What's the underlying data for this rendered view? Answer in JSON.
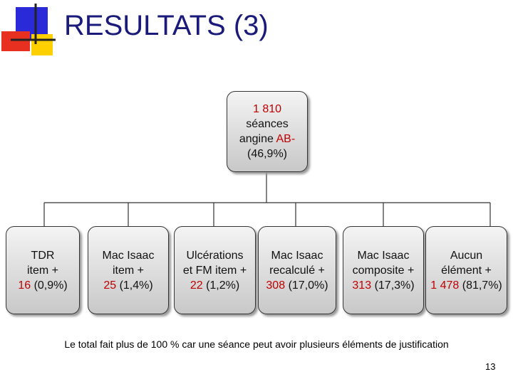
{
  "header": {
    "title": "RESULTATS (3)"
  },
  "root": {
    "count": "1 810",
    "line1": "séances",
    "line2": "angine",
    "group": "AB-",
    "percent": "(46,9%)"
  },
  "nodes": [
    {
      "lines": [
        "TDR",
        "item +"
      ],
      "count": "16",
      "percent": "(0,9%)"
    },
    {
      "lines": [
        "Mac Isaac",
        "item +"
      ],
      "count": "25",
      "percent": "(1,4%)"
    },
    {
      "lines": [
        "Ulcérations",
        "et FM item +"
      ],
      "count": "22",
      "percent": "(1,2%)"
    },
    {
      "lines": [
        "Mac Isaac",
        "recalculé +"
      ],
      "count": "308",
      "percent": "(17,0%)"
    },
    {
      "lines": [
        "Mac Isaac",
        "composite +"
      ],
      "count": "313",
      "percent": "(17,3%)"
    },
    {
      "lines": [
        "Aucun",
        "élément +"
      ],
      "count": "1 478",
      "percent": "(81,7%)"
    }
  ],
  "footnote": "Le total fait plus de 100 % car une séance peut avoir plusieurs éléments de justification",
  "page_number": "13"
}
